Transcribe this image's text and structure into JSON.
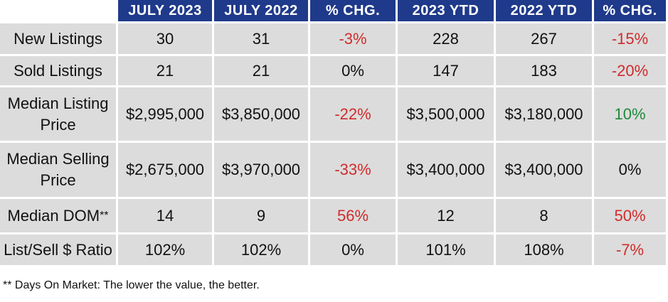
{
  "headers": [
    "",
    "JULY 2023",
    "JULY 2022",
    "% CHG.",
    "2023 YTD",
    "2022 YTD",
    "% CHG."
  ],
  "rows": [
    {
      "label": "New Listings",
      "label2": "",
      "values": [
        "30",
        "31",
        "-3%",
        "228",
        "267",
        "-15%"
      ]
    },
    {
      "label": "Sold Listings",
      "label2": "",
      "values": [
        "21",
        "21",
        "0%",
        "147",
        "183",
        "-20%"
      ]
    },
    {
      "label": "Median Listing",
      "label2": "Price",
      "values": [
        "$2,995,000",
        "$3,850,000",
        "-22%",
        "$3,500,000",
        "$3,180,000",
        "10%"
      ]
    },
    {
      "label": "Median Selling",
      "label2": "Price",
      "values": [
        "$2,675,000",
        "$3,970,000",
        "-33%",
        "$3,400,000",
        "$3,400,000",
        "0%"
      ]
    },
    {
      "label": "Median DOM",
      "label2": "**",
      "values": [
        "14",
        "9",
        "56%",
        "12",
        "8",
        "50%"
      ]
    },
    {
      "label": "List/Sell $ Ratio",
      "label2": "",
      "values": [
        "102%",
        "102%",
        "0%",
        "101%",
        "108%",
        "-7%"
      ]
    }
  ],
  "colors": {
    "header_bg": "#1f3a8a",
    "cell_bg": "#dcdcdc",
    "negative": "#d22b2b",
    "positive": "#1f8a3a"
  },
  "footnote": "** Days On Market: The lower the value, the better."
}
